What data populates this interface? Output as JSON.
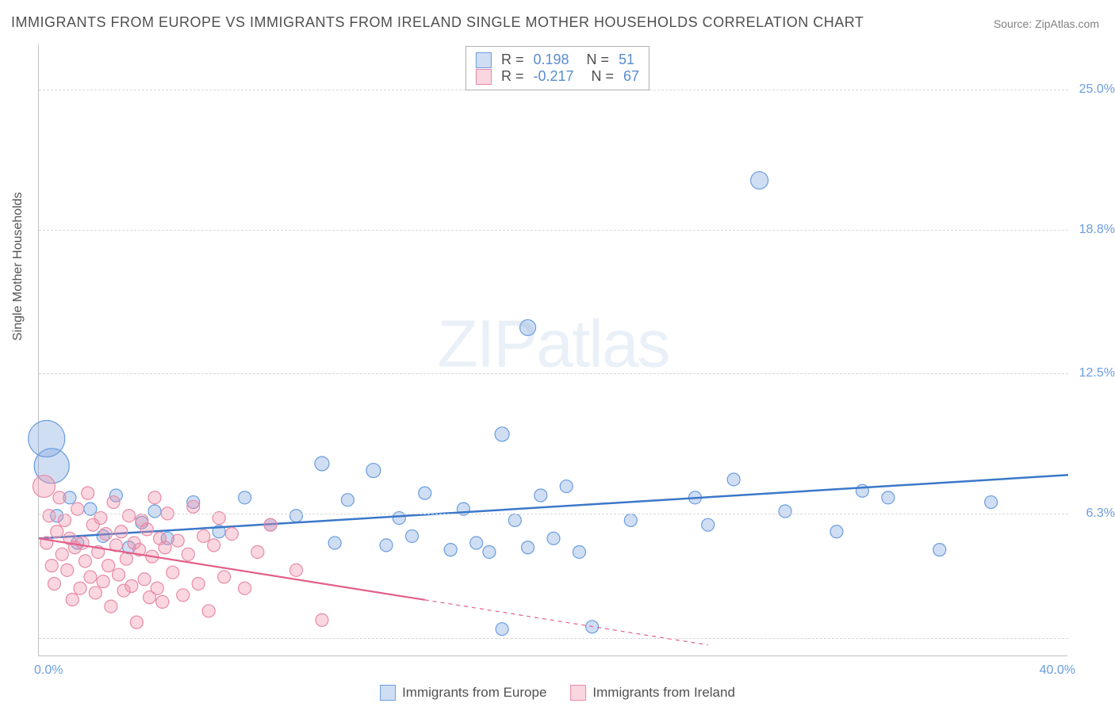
{
  "title": "IMMIGRANTS FROM EUROPE VS IMMIGRANTS FROM IRELAND SINGLE MOTHER HOUSEHOLDS CORRELATION CHART",
  "source_label": "Source:",
  "source_name": "ZipAtlas.com",
  "y_axis_label": "Single Mother Households",
  "watermark": {
    "bold": "ZIP",
    "light": "atlas"
  },
  "chart": {
    "type": "scatter-correlation",
    "x_range": [
      0.0,
      40.0
    ],
    "y_range": [
      0.0,
      27.0
    ],
    "x_ticks": [
      {
        "value": 0.0,
        "label": "0.0%"
      },
      {
        "value": 40.0,
        "label": "40.0%"
      }
    ],
    "y_ticks": [
      {
        "value": 6.3,
        "label": "6.3%"
      },
      {
        "value": 12.5,
        "label": "12.5%"
      },
      {
        "value": 18.8,
        "label": "18.8%"
      },
      {
        "value": 25.0,
        "label": "25.0%"
      }
    ],
    "gridlines_y": [
      0.8,
      6.3,
      12.5,
      18.8,
      25.0
    ],
    "background_color": "#ffffff",
    "grid_color": "#d8d8d8",
    "axis_color": "#c0c0c0",
    "tick_label_color": "#6a9de0",
    "series": [
      {
        "name": "Immigrants from Europe",
        "color_fill": "rgba(120,160,220,0.35)",
        "color_stroke": "#6a9de0",
        "trend_color": "#3b78c9",
        "trend_width": 2.5,
        "trend_dash_after_x": null,
        "trend": {
          "x1": 0,
          "y1": 5.2,
          "x2": 40,
          "y2": 8.0
        },
        "stats": {
          "R": "0.198",
          "N": "51"
        },
        "points": [
          {
            "x": 0.3,
            "y": 9.6,
            "r": 23
          },
          {
            "x": 0.5,
            "y": 8.4,
            "r": 22
          },
          {
            "x": 0.7,
            "y": 6.2,
            "r": 8
          },
          {
            "x": 1.2,
            "y": 7.0,
            "r": 8
          },
          {
            "x": 1.5,
            "y": 5.0,
            "r": 8
          },
          {
            "x": 2.0,
            "y": 6.5,
            "r": 8
          },
          {
            "x": 2.5,
            "y": 5.3,
            "r": 8
          },
          {
            "x": 3.0,
            "y": 7.1,
            "r": 8
          },
          {
            "x": 3.5,
            "y": 4.8,
            "r": 8
          },
          {
            "x": 4.0,
            "y": 5.9,
            "r": 8
          },
          {
            "x": 4.5,
            "y": 6.4,
            "r": 8
          },
          {
            "x": 5.0,
            "y": 5.2,
            "r": 8
          },
          {
            "x": 6.0,
            "y": 6.8,
            "r": 8
          },
          {
            "x": 7.0,
            "y": 5.5,
            "r": 8
          },
          {
            "x": 8.0,
            "y": 7.0,
            "r": 8
          },
          {
            "x": 9.0,
            "y": 5.8,
            "r": 8
          },
          {
            "x": 10.0,
            "y": 6.2,
            "r": 8
          },
          {
            "x": 11.0,
            "y": 8.5,
            "r": 9
          },
          {
            "x": 11.5,
            "y": 5.0,
            "r": 8
          },
          {
            "x": 12.0,
            "y": 6.9,
            "r": 8
          },
          {
            "x": 13.0,
            "y": 8.2,
            "r": 9
          },
          {
            "x": 13.5,
            "y": 4.9,
            "r": 8
          },
          {
            "x": 14.0,
            "y": 6.1,
            "r": 8
          },
          {
            "x": 14.5,
            "y": 5.3,
            "r": 8
          },
          {
            "x": 15.0,
            "y": 7.2,
            "r": 8
          },
          {
            "x": 16.0,
            "y": 4.7,
            "r": 8
          },
          {
            "x": 16.5,
            "y": 6.5,
            "r": 8
          },
          {
            "x": 17.0,
            "y": 5.0,
            "r": 8
          },
          {
            "x": 17.5,
            "y": 4.6,
            "r": 8
          },
          {
            "x": 18.0,
            "y": 9.8,
            "r": 9
          },
          {
            "x": 18.5,
            "y": 6.0,
            "r": 8
          },
          {
            "x": 18.0,
            "y": 1.2,
            "r": 8
          },
          {
            "x": 19.0,
            "y": 4.8,
            "r": 8
          },
          {
            "x": 19.5,
            "y": 7.1,
            "r": 8
          },
          {
            "x": 19.0,
            "y": 14.5,
            "r": 10
          },
          {
            "x": 20.0,
            "y": 5.2,
            "r": 8
          },
          {
            "x": 20.5,
            "y": 7.5,
            "r": 8
          },
          {
            "x": 21.0,
            "y": 4.6,
            "r": 8
          },
          {
            "x": 21.5,
            "y": 1.3,
            "r": 8
          },
          {
            "x": 23.0,
            "y": 6.0,
            "r": 8
          },
          {
            "x": 25.5,
            "y": 7.0,
            "r": 8
          },
          {
            "x": 26.0,
            "y": 5.8,
            "r": 8
          },
          {
            "x": 27.0,
            "y": 7.8,
            "r": 8
          },
          {
            "x": 28.0,
            "y": 21.0,
            "r": 11
          },
          {
            "x": 29.0,
            "y": 6.4,
            "r": 8
          },
          {
            "x": 31.0,
            "y": 5.5,
            "r": 8
          },
          {
            "x": 32.0,
            "y": 7.3,
            "r": 8
          },
          {
            "x": 33.0,
            "y": 7.0,
            "r": 8
          },
          {
            "x": 35.0,
            "y": 4.7,
            "r": 8
          },
          {
            "x": 37.0,
            "y": 6.8,
            "r": 8
          }
        ]
      },
      {
        "name": "Immigrants from Ireland",
        "color_fill": "rgba(240,140,165,0.35)",
        "color_stroke": "#e88aa5",
        "trend_color": "#e26088",
        "trend_width": 2.2,
        "trend_dash_after_x": 15.0,
        "trend": {
          "x1": 0,
          "y1": 5.2,
          "x2": 26,
          "y2": 0.5
        },
        "stats": {
          "R": "-0.217",
          "N": "67"
        },
        "points": [
          {
            "x": 0.2,
            "y": 7.5,
            "r": 14
          },
          {
            "x": 0.3,
            "y": 5.0,
            "r": 8
          },
          {
            "x": 0.4,
            "y": 6.2,
            "r": 8
          },
          {
            "x": 0.5,
            "y": 4.0,
            "r": 8
          },
          {
            "x": 0.6,
            "y": 3.2,
            "r": 8
          },
          {
            "x": 0.7,
            "y": 5.5,
            "r": 8
          },
          {
            "x": 0.8,
            "y": 7.0,
            "r": 8
          },
          {
            "x": 0.9,
            "y": 4.5,
            "r": 8
          },
          {
            "x": 1.0,
            "y": 6.0,
            "r": 8
          },
          {
            "x": 1.1,
            "y": 3.8,
            "r": 8
          },
          {
            "x": 1.2,
            "y": 5.2,
            "r": 8
          },
          {
            "x": 1.3,
            "y": 2.5,
            "r": 8
          },
          {
            "x": 1.4,
            "y": 4.8,
            "r": 8
          },
          {
            "x": 1.5,
            "y": 6.5,
            "r": 8
          },
          {
            "x": 1.6,
            "y": 3.0,
            "r": 8
          },
          {
            "x": 1.7,
            "y": 5.0,
            "r": 8
          },
          {
            "x": 1.8,
            "y": 4.2,
            "r": 8
          },
          {
            "x": 1.9,
            "y": 7.2,
            "r": 8
          },
          {
            "x": 2.0,
            "y": 3.5,
            "r": 8
          },
          {
            "x": 2.1,
            "y": 5.8,
            "r": 8
          },
          {
            "x": 2.2,
            "y": 2.8,
            "r": 8
          },
          {
            "x": 2.3,
            "y": 4.6,
            "r": 8
          },
          {
            "x": 2.4,
            "y": 6.1,
            "r": 8
          },
          {
            "x": 2.5,
            "y": 3.3,
            "r": 8
          },
          {
            "x": 2.6,
            "y": 5.4,
            "r": 8
          },
          {
            "x": 2.7,
            "y": 4.0,
            "r": 8
          },
          {
            "x": 2.8,
            "y": 2.2,
            "r": 8
          },
          {
            "x": 2.9,
            "y": 6.8,
            "r": 8
          },
          {
            "x": 3.0,
            "y": 4.9,
            "r": 8
          },
          {
            "x": 3.1,
            "y": 3.6,
            "r": 8
          },
          {
            "x": 3.2,
            "y": 5.5,
            "r": 8
          },
          {
            "x": 3.3,
            "y": 2.9,
            "r": 8
          },
          {
            "x": 3.4,
            "y": 4.3,
            "r": 8
          },
          {
            "x": 3.5,
            "y": 6.2,
            "r": 8
          },
          {
            "x": 3.6,
            "y": 3.1,
            "r": 8
          },
          {
            "x": 3.7,
            "y": 5.0,
            "r": 8
          },
          {
            "x": 3.8,
            "y": 1.5,
            "r": 8
          },
          {
            "x": 3.9,
            "y": 4.7,
            "r": 8
          },
          {
            "x": 4.0,
            "y": 6.0,
            "r": 8
          },
          {
            "x": 4.1,
            "y": 3.4,
            "r": 8
          },
          {
            "x": 4.2,
            "y": 5.6,
            "r": 8
          },
          {
            "x": 4.3,
            "y": 2.6,
            "r": 8
          },
          {
            "x": 4.4,
            "y": 4.4,
            "r": 8
          },
          {
            "x": 4.5,
            "y": 7.0,
            "r": 8
          },
          {
            "x": 4.6,
            "y": 3.0,
            "r": 8
          },
          {
            "x": 4.7,
            "y": 5.2,
            "r": 8
          },
          {
            "x": 4.8,
            "y": 2.4,
            "r": 8
          },
          {
            "x": 4.9,
            "y": 4.8,
            "r": 8
          },
          {
            "x": 5.0,
            "y": 6.3,
            "r": 8
          },
          {
            "x": 5.2,
            "y": 3.7,
            "r": 8
          },
          {
            "x": 5.4,
            "y": 5.1,
            "r": 8
          },
          {
            "x": 5.6,
            "y": 2.7,
            "r": 8
          },
          {
            "x": 5.8,
            "y": 4.5,
            "r": 8
          },
          {
            "x": 6.0,
            "y": 6.6,
            "r": 8
          },
          {
            "x": 6.2,
            "y": 3.2,
            "r": 8
          },
          {
            "x": 6.4,
            "y": 5.3,
            "r": 8
          },
          {
            "x": 6.6,
            "y": 2.0,
            "r": 8
          },
          {
            "x": 6.8,
            "y": 4.9,
            "r": 8
          },
          {
            "x": 7.0,
            "y": 6.1,
            "r": 8
          },
          {
            "x": 7.2,
            "y": 3.5,
            "r": 8
          },
          {
            "x": 7.5,
            "y": 5.4,
            "r": 8
          },
          {
            "x": 8.0,
            "y": 3.0,
            "r": 8
          },
          {
            "x": 8.5,
            "y": 4.6,
            "r": 8
          },
          {
            "x": 9.0,
            "y": 5.8,
            "r": 8
          },
          {
            "x": 10.0,
            "y": 3.8,
            "r": 8
          },
          {
            "x": 11.0,
            "y": 1.6,
            "r": 8
          }
        ]
      }
    ],
    "bottom_legend": [
      {
        "label": "Immigrants from Europe",
        "fill": "rgba(120,160,220,0.35)",
        "stroke": "#6a9de0"
      },
      {
        "label": "Immigrants from Ireland",
        "fill": "rgba(240,140,165,0.35)",
        "stroke": "#e88aa5"
      }
    ]
  }
}
